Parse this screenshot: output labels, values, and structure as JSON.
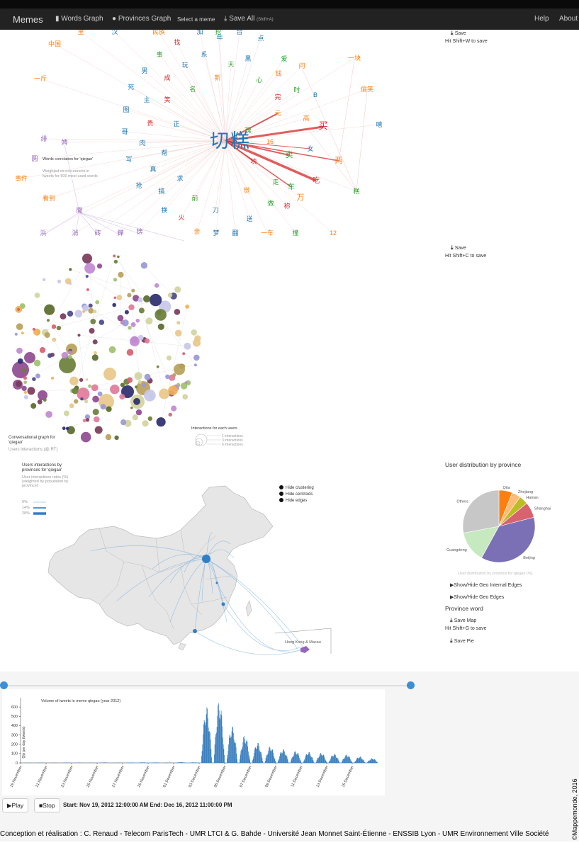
{
  "nav": {
    "brand": "Memes",
    "words_graph": "Words Graph",
    "provinces_graph": "Provinces Graph",
    "select_meme": "Select a meme",
    "save_all": "Save All",
    "save_all_shortcut": "(Shift+A)",
    "help": "Help",
    "about": "About"
  },
  "words_panel": {
    "save": "Save",
    "hint": "Hit Shift+W to save",
    "legend_title": "Words correlation for 'qiegao'",
    "legend_sub1": "Weighted co-occurences in",
    "legend_sub2": "tweets for 500 most used words",
    "center_words": [
      "切",
      "糕"
    ],
    "words": [
      {
        "t": "里",
        "c": "#ff7f0e"
      },
      {
        "t": "汉",
        "c": "#1f77b4"
      },
      {
        "t": "民族",
        "c": "#ff7f0e"
      },
      {
        "t": "加",
        "c": "#1f77b4"
      },
      {
        "t": "挖",
        "c": "#2ca02c"
      },
      {
        "t": "年",
        "c": "#1f77b4"
      },
      {
        "t": "台",
        "c": "#1f77b4"
      },
      {
        "t": "点",
        "c": "#1f77b4"
      },
      {
        "t": "中国",
        "c": "#ff7f0e"
      },
      {
        "t": "找",
        "c": "#d62728"
      },
      {
        "t": "事",
        "c": "#2ca02c"
      },
      {
        "t": "系",
        "c": "#1f77b4"
      },
      {
        "t": "黑",
        "c": "#1f77b4"
      },
      {
        "t": "爱",
        "c": "#2ca02c"
      },
      {
        "t": "一块",
        "c": "#ff7f0e"
      },
      {
        "t": "玩",
        "c": "#1f77b4"
      },
      {
        "t": "天",
        "c": "#2ca02c"
      },
      {
        "t": "问",
        "c": "#ff7f0e"
      },
      {
        "t": "男",
        "c": "#1f77b4"
      },
      {
        "t": "一斤",
        "c": "#ff7f0e"
      },
      {
        "t": "钱",
        "c": "#ff7f0e"
      },
      {
        "t": "成",
        "c": "#d62728"
      },
      {
        "t": "新",
        "c": "#ff7f0e"
      },
      {
        "t": "心",
        "c": "#2ca02c"
      },
      {
        "t": "死",
        "c": "#1f77b4"
      },
      {
        "t": "名",
        "c": "#2ca02c"
      },
      {
        "t": "时",
        "c": "#2ca02c"
      },
      {
        "t": "偷笑",
        "c": "#ff7f0e"
      },
      {
        "t": "主",
        "c": "#1f77b4"
      },
      {
        "t": "笑",
        "c": "#d62728"
      },
      {
        "t": "完",
        "c": "#d62728"
      },
      {
        "t": "B",
        "c": "#1f77b4"
      },
      {
        "t": "图",
        "c": "#1f77b4"
      },
      {
        "t": "元",
        "c": "#ff7f0e"
      },
      {
        "t": "高",
        "c": "#ff7f0e"
      },
      {
        "t": "贵",
        "c": "#d62728"
      },
      {
        "t": "正",
        "c": "#1f77b4"
      },
      {
        "t": "买",
        "c": "#d62728"
      },
      {
        "t": "嘻",
        "c": "#1f77b4"
      },
      {
        "t": "哥",
        "c": "#1f77b4"
      },
      {
        "t": "肉",
        "c": "#1f77b4"
      },
      {
        "t": "16",
        "c": "#ff7f0e"
      },
      {
        "t": "绯",
        "c": "#9467bd"
      },
      {
        "t": "女",
        "c": "#1f77b4"
      },
      {
        "t": "帮",
        "c": "#1f77b4"
      },
      {
        "t": "卖",
        "c": "#2ca02c"
      },
      {
        "t": "写",
        "c": "#1f77b4"
      },
      {
        "t": "两",
        "c": "#ff7f0e"
      },
      {
        "t": "块",
        "c": "#d62728"
      },
      {
        "t": "真",
        "c": "#1f77b4"
      },
      {
        "t": "事件",
        "c": "#ff7f0e"
      },
      {
        "t": "抢",
        "c": "#1f77b4"
      },
      {
        "t": "求",
        "c": "#1f77b4"
      },
      {
        "t": "走",
        "c": "#2ca02c"
      },
      {
        "t": "吃",
        "c": "#d62728"
      },
      {
        "t": "搞",
        "c": "#1f77b4"
      },
      {
        "t": "车",
        "c": "#2ca02c"
      },
      {
        "t": "觉",
        "c": "#ff7f0e"
      },
      {
        "t": "糕",
        "c": "#2ca02c"
      },
      {
        "t": "看到",
        "c": "#ff7f0e"
      },
      {
        "t": "前",
        "c": "#2ca02c"
      },
      {
        "t": "万",
        "c": "#ff7f0e"
      },
      {
        "t": "做",
        "c": "#2ca02c"
      },
      {
        "t": "称",
        "c": "#d62728"
      },
      {
        "t": "换",
        "c": "#1f77b4"
      },
      {
        "t": "刀",
        "c": "#1f77b4"
      },
      {
        "t": "火",
        "c": "#d62728"
      },
      {
        "t": "送",
        "c": "#1f77b4"
      },
      {
        "t": "浜",
        "c": "#9467bd"
      },
      {
        "t": "消",
        "c": "#9467bd"
      },
      {
        "t": "砖",
        "c": "#9467bd"
      },
      {
        "t": "鏵",
        "c": "#9467bd"
      },
      {
        "t": "锛",
        "c": "#9467bd"
      },
      {
        "t": "亲",
        "c": "#ff7f0e"
      },
      {
        "t": "梦",
        "c": "#1f77b4"
      },
      {
        "t": "翻",
        "c": "#1f77b4"
      },
      {
        "t": "一车",
        "c": "#ff7f0e"
      },
      {
        "t": "撞",
        "c": "#2ca02c"
      },
      {
        "t": "12",
        "c": "#ff7f0e"
      },
      {
        "t": "閫",
        "c": "#9467bd"
      },
      {
        "t": "瑰",
        "c": "#2ca02c"
      },
      {
        "t": "圆",
        "c": "#9467bd"
      },
      {
        "t": "娉",
        "c": "#9467bd"
      }
    ]
  },
  "conv_panel": {
    "save": "Save",
    "hint": "Hit Shift+C to save",
    "title1": "Conversational graph for",
    "title2": "'qiegao'",
    "sub": "Users interactions (@,RT)",
    "legend_title": "Interactions for each users",
    "legend_items": [
      "1 interactions",
      "3 interactions",
      "6 interactions"
    ],
    "palette": [
      "#8e4b8f",
      "#b7a15a",
      "#6b7f3a",
      "#9898d8",
      "#e8c88a",
      "#d2d2a0",
      "#d95f6f",
      "#2d2d6e",
      "#c08ad0",
      "#7a3a5a",
      "#a0c070",
      "#5a6b2a",
      "#f0b050",
      "#4a4a8a",
      "#c8c8e8",
      "#e07a9a"
    ]
  },
  "map_panel": {
    "title1": "Users interactions by",
    "title2": "provinces for 'qiegao'",
    "sub1": "User interactions rates (%)",
    "sub2": "(weighted by population by",
    "sub3": "province)",
    "scale": [
      "0%",
      "14%",
      "28%"
    ],
    "controls": [
      "Hide clustering",
      "Hide centroids",
      "Hide edges"
    ],
    "hk_label": "Hong Kong & Macau"
  },
  "pie_panel": {
    "title": "User distribution by province",
    "caption": "User distribution by province for qiegao (%)",
    "slices": [
      {
        "name": "Qita",
        "value": 6,
        "color": "#ff7f0e"
      },
      {
        "name": "Zhejiang",
        "value": 4,
        "color": "#ffbb78"
      },
      {
        "name": "Hainan",
        "value": 4,
        "color": "#bcbd22"
      },
      {
        "name": "Shanghai",
        "value": 7,
        "color": "#d9626f"
      },
      {
        "name": "Beijing",
        "value": 37,
        "color": "#7b6fb6"
      },
      {
        "name": "Guangdong",
        "value": 14,
        "color": "#c7e9c0"
      },
      {
        "name": "Others",
        "value": 28,
        "color": "#c7c7c7"
      }
    ],
    "toggle_internal": "Show/Hide Geo Internal Edges",
    "toggle_edges": "Show/Hide Geo Edges",
    "province_word": "Province word",
    "save_map": "Save Map",
    "hint_map": "Hit Shift+G to save",
    "save_pie": "Save Pie"
  },
  "chart_data": {
    "type": "bar",
    "title": "Volume of tweets in meme qiegao (year 2012)",
    "ylabel": "Qty per day (tweets)",
    "ylim": [
      0,
      700
    ],
    "yticks": [
      0,
      100,
      200,
      300,
      400,
      500,
      600
    ],
    "xticks": [
      "19 November",
      "21 November",
      "23 November",
      "25 November",
      "27 November",
      "29 November",
      "01 December",
      "03 December",
      "05 December",
      "07 December",
      "09 December",
      "11 December",
      "13 December",
      "15 December"
    ],
    "daily_peaks": [
      2,
      3,
      2,
      4,
      3,
      2,
      5,
      3,
      4,
      6,
      5,
      4,
      8,
      6,
      610,
      670,
      400,
      300,
      220,
      180,
      150,
      130,
      120,
      110,
      100,
      90,
      70,
      50
    ]
  },
  "controls": {
    "play": "Play",
    "stop": "Stop",
    "time_range": "Start: Nov 19, 2012 12:00:00 AM End: Dec 16, 2012 11:00:00 PM"
  },
  "footer": {
    "credit": "Conception et réalisation : C. Renaud - Telecom ParisTech - UMR LTCI & G. Bahde - Université Jean Monnet Saint-Étienne - ENSSIB Lyon - UMR Environnement Ville Société",
    "copyright": "©Mappemonde, 2016"
  }
}
